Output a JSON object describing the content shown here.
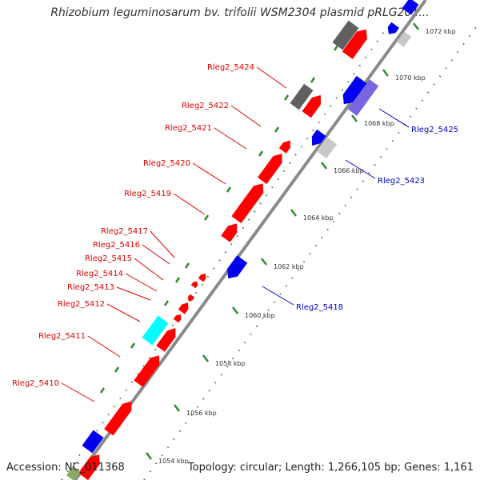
{
  "title": "Rhizobium leguminosarum bv. trifolii WSM2304 plasmid pRLG201...",
  "footer": {
    "accession": "Accession: NC_011368",
    "summary": "Topology: circular; Length: 1,266,105 bp; Genes: 1,161"
  },
  "colors": {
    "backbone": "#8a8a8a",
    "tick": "#2e8b2e",
    "left_label": "#e00000",
    "right_label": "#0000cc",
    "red": "#ff0000",
    "blue": "#0000ee",
    "gray": "#606060",
    "light_gray": "#c8c8c8",
    "cyan": "#00ffff",
    "violet": "#7766dd"
  },
  "ticks": [
    "1054 kbp",
    "1056 kbp",
    "1058 kbp",
    "1060 kbp",
    "1062 kbp",
    "1064 kbp",
    "1066 kbp",
    "1068 kbp",
    "1070 kbp",
    "1072 kbp"
  ],
  "labels_left": [
    "Rleg2_5424",
    "Rleg2_5422",
    "Rleg2_5421",
    "Rleg2_5420",
    "Rleg2_5419",
    "Rleg2_5417",
    "Rleg2_5416",
    "Rleg2_5415",
    "Rleg2_5414",
    "Rleg2_5413",
    "Rleg2_5412",
    "Rleg2_5411",
    "Rleg2_5410"
  ],
  "labels_right": [
    "Rleg2_5425",
    "Rleg2_5423",
    "Rleg2_5418"
  ]
}
